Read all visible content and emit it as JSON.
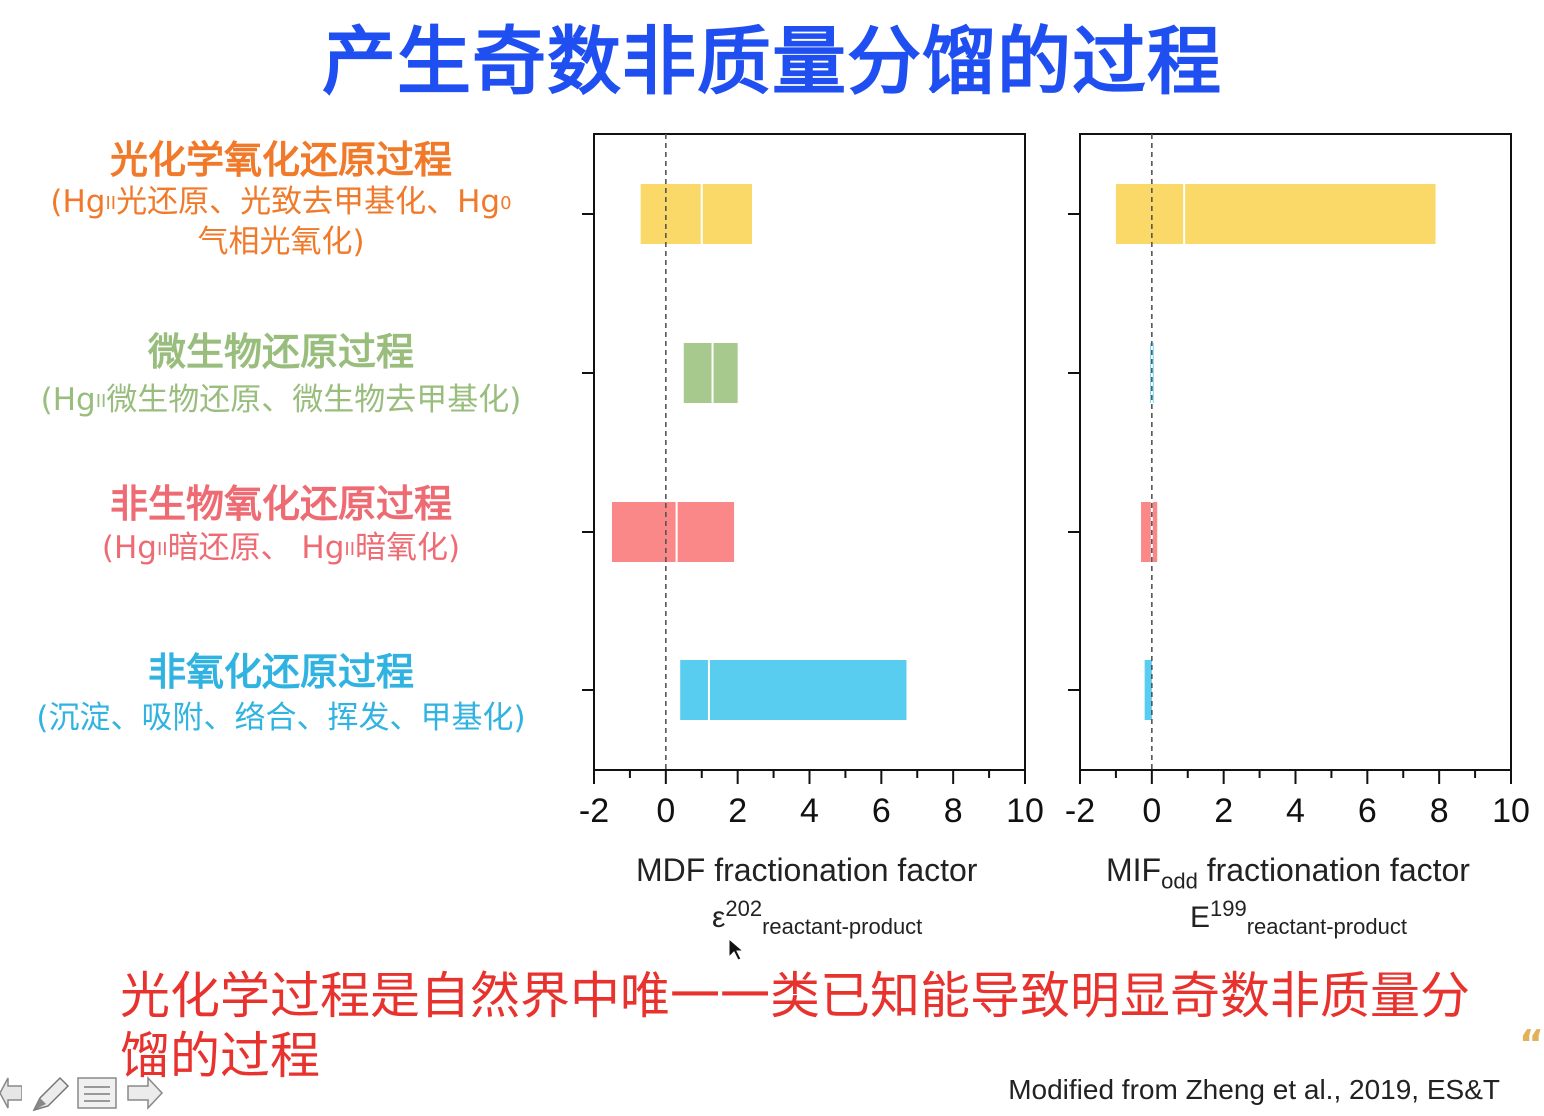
{
  "title": "产生奇数非质量分馏的过程",
  "categories": [
    {
      "main": "光化学氧化还原过程",
      "sub_line1_a": "(Hg",
      "sub_line1_sup1": "II",
      "sub_line1_b": "光还原、光致去甲基化、Hg",
      "sub_line1_sup2": "0",
      "sub_line2": "气相光氧化)",
      "color": "#f07a2a"
    },
    {
      "main": "微生物还原过程",
      "sub_a": "(Hg",
      "sub_sup": "II",
      "sub_b": "微生物还原、微生物去甲基化)",
      "color": "#98bd7c"
    },
    {
      "main": "非生物氧化还原过程",
      "sub_a": "(Hg",
      "sub_sup1": "II",
      "sub_b": "暗还原、 Hg",
      "sub_sup2": "II",
      "sub_c": "暗氧化)",
      "color": "#ee6b73"
    },
    {
      "main": "非氧化还原过程",
      "sub": "(沉淀、吸附、络合、挥发、甲基化)",
      "color": "#31b3e1"
    }
  ],
  "chart_data": [
    {
      "type": "bar",
      "orientation": "horizontal-range",
      "xlim": [
        -2,
        10
      ],
      "ticks": [
        "-2",
        "0",
        "2",
        "4",
        "6",
        "8",
        "10"
      ],
      "xlabel_line1": "MDF fractionation factor",
      "xlabel_line2": {
        "symbol": "ε",
        "sup": "202",
        "sub": "reactant-product"
      },
      "series": [
        {
          "category": "光化学氧化还原过程",
          "min": -0.7,
          "mid": 1.0,
          "max": 2.4,
          "color": "#fad968"
        },
        {
          "category": "微生物还原过程",
          "min": 0.5,
          "mid": 1.3,
          "max": 2.0,
          "color": "#a8c98e"
        },
        {
          "category": "非生物氧化还原过程",
          "min": -1.5,
          "mid": 0.3,
          "max": 1.9,
          "color": "#fb8888"
        },
        {
          "category": "非氧化还原过程",
          "min": 0.4,
          "mid": 1.2,
          "max": 6.7,
          "color": "#59cdef"
        }
      ],
      "reference_line": 0
    },
    {
      "type": "bar",
      "orientation": "horizontal-range",
      "xlim": [
        -2,
        10
      ],
      "ticks": [
        "-2",
        "0",
        "2",
        "4",
        "6",
        "8",
        "10"
      ],
      "xlabel_line1": {
        "a": "MIF",
        "sub": "odd",
        "b": " fractionation factor"
      },
      "xlabel_line2": {
        "symbol": "E",
        "sup": "199",
        "sub": "reactant-product"
      },
      "series": [
        {
          "category": "光化学氧化还原过程",
          "min": -1.0,
          "mid": 0.9,
          "max": 7.9,
          "color": "#fad968"
        },
        {
          "category": "微生物还原过程",
          "min": -0.05,
          "mid": 0.0,
          "max": 0.05,
          "color": "#59cdef"
        },
        {
          "category": "非生物氧化还原过程",
          "min": -0.3,
          "mid": 0.0,
          "max": 0.15,
          "color": "#fb8888"
        },
        {
          "category": "非氧化还原过程",
          "min": -0.2,
          "mid": 0.0,
          "max": 0.0,
          "color": "#59cdef"
        }
      ],
      "reference_line": 0
    }
  ],
  "conclusion": "光化学过程是自然界中唯一一类已知能导致明显奇数非质量分馏的过程",
  "credit": "Modified from Zheng et al., 2019, ES&T",
  "quote_mark": "“"
}
